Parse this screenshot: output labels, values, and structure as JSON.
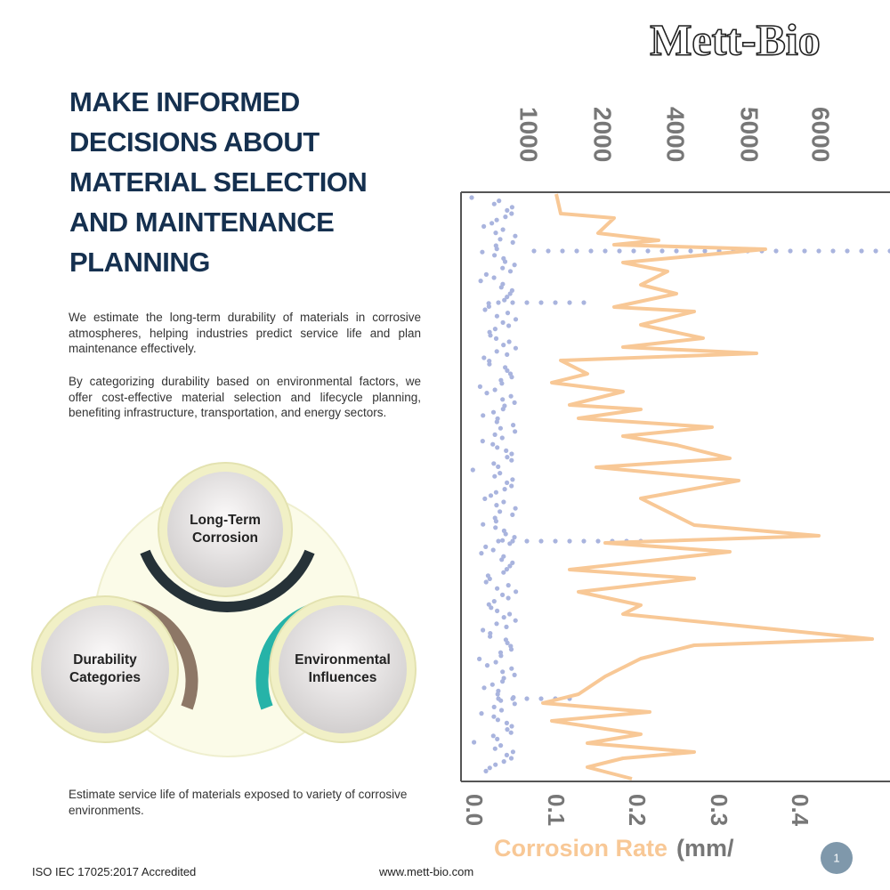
{
  "header": {
    "logo": "Mett-Bio"
  },
  "title": {
    "lines": [
      "MAKE INFORMED",
      "DECISIONS ABOUT",
      "MATERIAL SELECTION",
      "AND MAINTENANCE",
      "PLANNING"
    ]
  },
  "paragraphs": [
    "We estimate the long-term durability of materials in corrosive atmospheres, helping industries predict service life and plan maintenance effectively.",
    "By categorizing durability based on environmental factors, we offer cost-effective material selection and lifecycle planning, benefiting infrastructure, transportation, and energy sectors."
  ],
  "diagram": {
    "nodes": [
      {
        "label": [
          "Long-Term",
          "Corrosion"
        ]
      },
      {
        "label": [
          "Durability",
          "Categories"
        ]
      },
      {
        "label": [
          "Environmental",
          "Influences"
        ]
      }
    ]
  },
  "caption": "Estimate service life of materials exposed to variety of corrosive environments.",
  "chart": {
    "top_ticks": [
      "1000",
      "2000",
      "4000",
      "5000",
      "6000"
    ],
    "bottom_ticks": [
      "0.0",
      "0.1",
      "0.2",
      "0.3",
      "0.4"
    ],
    "axis_label": {
      "highlight": "Corrosion Rate",
      "rest": "(mm/"
    }
  },
  "footer": {
    "accreditation": "ISO IEC 17025:2017 Accredited",
    "website": "www.mett-bio.com",
    "page": "1"
  }
}
